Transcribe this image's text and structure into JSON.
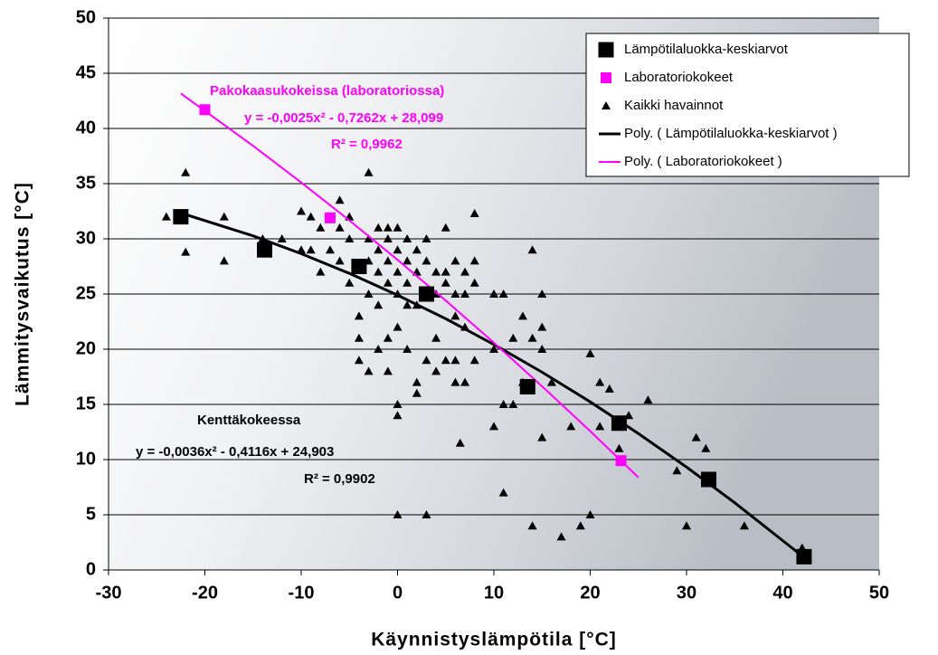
{
  "chart_data": {
    "type": "scatter",
    "xlabel": "Käynnistyslämpötila [°C]",
    "ylabel": "Lämmitysvaikutus [°C]",
    "xlim": [
      -30,
      50
    ],
    "xticks": [
      -30,
      -20,
      -10,
      0,
      10,
      20,
      30,
      40,
      50
    ],
    "ylim": [
      0,
      50
    ],
    "yticks": [
      0,
      5,
      10,
      15,
      20,
      25,
      30,
      35,
      40,
      45,
      50
    ],
    "grid": true,
    "legend": "upper right",
    "series": [
      {
        "name": "Lämpötilaluokka-keskiarvot",
        "color": "#000000",
        "marker": "square",
        "x": [
          -22.5,
          -13.8,
          -4,
          3,
          13.5,
          23,
          32.3,
          42.2
        ],
        "values": [
          32,
          29,
          27.5,
          25,
          16.6,
          13.3,
          8.2,
          1.2
        ]
      },
      {
        "name": "Laboratoriokokeet",
        "color": "#ff00ff",
        "marker": "square",
        "x": [
          -20,
          -7,
          23.2
        ],
        "values": [
          41.7,
          31.9,
          9.9
        ]
      },
      {
        "name": "Kaikki havainnot",
        "color": "#000000",
        "marker": "triangle",
        "x": [
          -24,
          -22,
          -22,
          -18,
          -18,
          -14,
          -12,
          -10,
          -10,
          -9,
          -9,
          -8,
          -8,
          -7,
          -7,
          -6,
          -6,
          -6,
          -5,
          -5,
          -5,
          -4,
          -4,
          -4,
          -3,
          -3,
          -3,
          -3,
          -3,
          -2,
          -2,
          -2,
          -2,
          -2,
          -1,
          -1,
          -1,
          -1,
          -1,
          -1,
          0,
          0,
          0,
          0,
          0,
          0,
          0,
          0,
          1,
          1,
          1,
          1,
          1,
          2,
          2,
          2,
          2,
          2,
          3,
          3,
          3,
          3,
          4,
          4,
          4,
          4,
          5,
          5,
          5,
          5,
          6,
          6,
          6,
          6,
          6,
          6.5,
          7,
          7,
          7,
          7,
          8,
          8,
          8,
          8,
          10,
          10,
          10,
          11,
          11,
          11,
          12,
          12,
          13,
          13,
          14,
          14,
          14,
          15,
          15,
          15,
          15,
          16,
          17,
          18,
          19,
          20,
          20,
          21,
          21,
          22,
          23,
          24,
          26,
          29,
          30,
          31,
          32,
          36,
          42
        ],
        "values": [
          32,
          36,
          28.8,
          32,
          28,
          30,
          30,
          29,
          32.5,
          32,
          29,
          31,
          27,
          32,
          29,
          33.5,
          31,
          28,
          32,
          30,
          26,
          19,
          21,
          23,
          36,
          30,
          28,
          25,
          18,
          31,
          29,
          27,
          24,
          20,
          31,
          30,
          28,
          26,
          21,
          18,
          31,
          29,
          27,
          25,
          22,
          15,
          14,
          5,
          30,
          28,
          26,
          24,
          20,
          29,
          27,
          24,
          17,
          16,
          30,
          28,
          5,
          19,
          27,
          25,
          21,
          18,
          31,
          27,
          26,
          19,
          28,
          25,
          23,
          19,
          17,
          11.5,
          27,
          25,
          22,
          17,
          32.3,
          28,
          26,
          19,
          25,
          20,
          13,
          25,
          7,
          15,
          21,
          15,
          23,
          17,
          29,
          21,
          4,
          25,
          22,
          20,
          12,
          17,
          3,
          13,
          4,
          19.6,
          5,
          17,
          13,
          16.4,
          11,
          14,
          15.4,
          9,
          4,
          12,
          11,
          4,
          2
        ]
      },
      {
        "name": "Poly. ( Lämpötilaluokka-keskiarvot )",
        "color": "#000000",
        "marker": "line",
        "x": [
          -22.5,
          -15,
          -10,
          -5,
          0,
          5,
          10,
          15,
          20,
          25,
          30,
          35,
          42
        ],
        "values": [
          32.34,
          30.27,
          28.66,
          26.87,
          24.9,
          22.76,
          20.43,
          17.92,
          15.23,
          12.36,
          9.32,
          6.09,
          1.27
        ]
      },
      {
        "name": "Poly. ( Laboratoriokokeet )",
        "color": "#ff00ff",
        "marker": "line",
        "x": [
          -22.5,
          -15,
          -10,
          -5,
          0,
          5,
          10,
          15,
          20,
          25
        ],
        "values": [
          43.17,
          38.43,
          35.11,
          31.67,
          28.1,
          24.41,
          20.59,
          16.64,
          12.58,
          8.38
        ]
      }
    ],
    "annotations": [
      {
        "text": "Pakokaasukokeissa (laboratoriossa)",
        "color": "#ff00ff"
      },
      {
        "text": "y = -0,0025x² - 0,7262x + 28,099",
        "color": "#ff00ff"
      },
      {
        "text": "R² = 0,9962",
        "color": "#ff00ff"
      },
      {
        "text": "Kenttäkokeessa",
        "color": "#000000"
      },
      {
        "text": "y = -0,0036x² - 0,4116x + 24,903",
        "color": "#000000"
      },
      {
        "text": "R² = 0,9902",
        "color": "#000000"
      }
    ]
  }
}
